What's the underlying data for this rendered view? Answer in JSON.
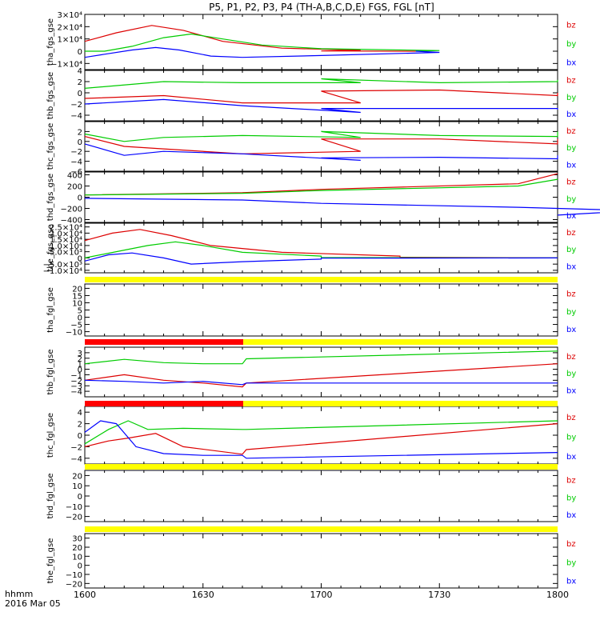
{
  "title": "P5, P1, P2, P3, P4 (TH-A,B,C,D,E) FGS, FGL [nT]",
  "date_label_top": "hhmm",
  "date_label_bottom": "2016 Mar 05",
  "colors": {
    "bx": "#0000ff",
    "by": "#00cc00",
    "bz": "#dd0000",
    "flag_yellow": "#ffff00",
    "flag_red": "#ff0000",
    "axis": "#000000"
  },
  "chart_data": {
    "type": "line",
    "x_axis": {
      "unit": "hhmm",
      "range": [
        1600,
        1800
      ],
      "ticks": [
        1600,
        1630,
        1700,
        1730,
        1800
      ],
      "tick_labels": [
        "1600",
        "1630",
        "1700",
        "1730",
        "1800"
      ]
    },
    "panels": [
      {
        "ylabel": "tha_fgs_gse",
        "ylim": [
          -15000,
          30000
        ],
        "ticks": [
          -10000,
          0,
          10000,
          20000,
          30000
        ],
        "tick_labels": [
          "−1×10⁴",
          "0",
          "1×10⁴",
          "2×10⁴",
          "3×10⁴"
        ],
        "series": [
          {
            "name": "bz",
            "x": [
              1600,
              1608,
              1617,
              1625,
              1635,
              1650,
              1670,
              1700,
              1724
            ],
            "y": [
              8000,
              15000,
              21000,
              17000,
              8000,
              2500,
              800,
              200,
              0
            ]
          },
          {
            "name": "by",
            "x": [
              1600,
              1605,
              1612,
              1620,
              1627,
              1635,
              1645,
              1660,
              1690,
              1724
            ],
            "y": [
              0,
              0,
              4000,
              11000,
              14000,
              10000,
              5000,
              2000,
              500,
              0
            ]
          },
          {
            "name": "bx",
            "x": [
              1600,
              1605,
              1612,
              1618,
              1624,
              1632,
              1640,
              1660,
              1690,
              1724
            ],
            "y": [
              -5000,
              -2500,
              1000,
              3000,
              1000,
              -4000,
              -5000,
              -3500,
              -1000,
              0
            ]
          }
        ]
      },
      {
        "ylabel": "thb_fgs_gse",
        "ylim": [
          -5,
          4
        ],
        "ticks": [
          -4,
          -2,
          0,
          2,
          4
        ],
        "tick_labels": [
          "−4",
          "−2",
          "0",
          "2",
          "4"
        ],
        "series": [
          {
            "name": "by",
            "x": [
              1600,
              1620,
              1640,
              1670,
              1700,
              1730,
              1760,
              1800
            ],
            "y": [
              0.8,
              2.0,
              1.8,
              1.8,
              2.5,
              1.8,
              2.0,
              2.3
            ]
          },
          {
            "name": "bz",
            "x": [
              1600,
              1620,
              1640,
              1670,
              1700,
              1730,
              1760,
              1800
            ],
            "y": [
              -1.0,
              -0.5,
              -1.8,
              -1.8,
              0.3,
              0.5,
              -0.5,
              0.0
            ]
          },
          {
            "name": "bx",
            "x": [
              1600,
              1620,
              1640,
              1670,
              1700,
              1730,
              1760,
              1800
            ],
            "y": [
              -2.0,
              -1.2,
              -2.3,
              -3.5,
              -2.8,
              -2.8,
              -2.8,
              -3.0
            ]
          }
        ]
      },
      {
        "ylabel": "thc_fgs_gse",
        "ylim": [
          -6,
          4
        ],
        "ticks": [
          -6,
          -4,
          -2,
          0,
          2
        ],
        "tick_labels": [
          "−6",
          "−4",
          "−2",
          "0",
          "2"
        ],
        "series": [
          {
            "name": "by",
            "x": [
              1600,
              1610,
              1620,
              1640,
              1670,
              1700,
              1730,
              1760,
              1800
            ],
            "y": [
              1.5,
              0.0,
              0.8,
              1.2,
              0.8,
              2.0,
              1.2,
              1.0,
              2.0
            ]
          },
          {
            "name": "bz",
            "x": [
              1600,
              1610,
              1620,
              1640,
              1670,
              1700,
              1730,
              1760,
              1800
            ],
            "y": [
              1.0,
              -1.0,
              -1.5,
              -2.5,
              -2.0,
              0.5,
              0.5,
              -0.5,
              0.5
            ]
          },
          {
            "name": "bx",
            "x": [
              1600,
              1610,
              1620,
              1640,
              1670,
              1700,
              1730,
              1760,
              1800
            ],
            "y": [
              -0.5,
              -2.8,
              -2.0,
              -2.5,
              -3.8,
              -3.3,
              -3.2,
              -3.5,
              -2.8
            ]
          }
        ]
      },
      {
        "ylabel": "thd_fgs_gse",
        "ylim": [
          -450,
          450
        ],
        "ticks": [
          -400,
          -200,
          0,
          200,
          400
        ],
        "tick_labels": [
          "−400",
          "−200",
          "0",
          "200",
          "400"
        ],
        "series": [
          {
            "name": "bz",
            "x": [
              1600,
              1640,
              1700,
              1750,
              1800
            ],
            "y": [
              40,
              80,
              140,
              240,
              420
            ]
          },
          {
            "name": "by",
            "x": [
              1600,
              1640,
              1700,
              1750,
              1800
            ],
            "y": [
              40,
              70,
              120,
              200,
              320
            ]
          },
          {
            "name": "bx",
            "x": [
              1600,
              1640,
              1700,
              1750,
              1780,
              1800
            ],
            "y": [
              -20,
              -50,
              -110,
              -180,
              -240,
              -320
            ]
          }
        ]
      },
      {
        "ylabel": "the_fgs_gse",
        "ylim": [
          -12000,
          28000
        ],
        "ticks": [
          -10000,
          -5000,
          0,
          5000,
          10000,
          15000,
          20000,
          25000
        ],
        "tick_labels": [
          "−1.0×10⁴",
          "−5.0×10³",
          "0",
          "5.0×10³",
          "1.0×10⁴",
          "1.5×10⁴",
          "2.0×10⁴",
          "2.5×10⁴"
        ],
        "series": [
          {
            "name": "bz",
            "x": [
              1600,
              1607,
              1614,
              1622,
              1632,
              1650,
              1680,
              1720,
              1800
            ],
            "y": [
              14000,
              20000,
              23000,
              18000,
              10000,
              4500,
              1500,
              500,
              0
            ]
          },
          {
            "name": "by",
            "x": [
              1600,
              1608,
              1616,
              1623,
              1630,
              1640,
              1660,
              1700,
              1800
            ],
            "y": [
              0,
              5000,
              10000,
              13000,
              10000,
              4500,
              1500,
              300,
              0
            ]
          },
          {
            "name": "bx",
            "x": [
              1600,
              1606,
              1612,
              1620,
              1627,
              1640,
              1660,
              1700,
              1800
            ],
            "y": [
              -2500,
              2500,
              4000,
              0,
              -5000,
              -3000,
              -1000,
              -200,
              0
            ]
          }
        ]
      },
      {
        "ylabel": "tha_fgl_gse",
        "ylim": [
          -13,
          23
        ],
        "ticks": [
          -10,
          -5,
          0,
          5,
          10,
          15,
          20
        ],
        "tick_labels": [
          "−10",
          "−5",
          "0",
          "5",
          "10",
          "15",
          "20"
        ],
        "series": []
      },
      {
        "ylabel": "thb_fgl_gse",
        "ylim": [
          -5,
          4
        ],
        "ticks": [
          -4,
          -3,
          -2,
          -1,
          0,
          1,
          2,
          3
        ],
        "tick_labels": [
          "−4",
          "−3",
          "−2",
          "−1",
          "0",
          "1",
          "2",
          "3"
        ],
        "series": [
          {
            "name": "by",
            "x": [
              1600,
              1610,
              1620,
              1630,
              1640,
              1641,
              1800
            ],
            "y": [
              1.0,
              1.8,
              1.2,
              1.0,
              1.0,
              1.9,
              3.3
            ]
          },
          {
            "name": "bz",
            "x": [
              1600,
              1610,
              1620,
              1630,
              1640,
              1641,
              1800
            ],
            "y": [
              -2.0,
              -1.0,
              -2.0,
              -2.5,
              -3.2,
              -2.5,
              1.0
            ]
          },
          {
            "name": "bx",
            "x": [
              1600,
              1610,
              1620,
              1630,
              1640,
              1641,
              1800
            ],
            "y": [
              -2.0,
              -2.2,
              -2.5,
              -2.2,
              -2.8,
              -2.5,
              -2.5
            ]
          }
        ]
      },
      {
        "ylabel": "thc_fgl_gse",
        "ylim": [
          -5,
          5
        ],
        "ticks": [
          -4,
          -2,
          0,
          2,
          4
        ],
        "tick_labels": [
          "−4",
          "−2",
          "0",
          "2",
          "4"
        ],
        "series": [
          {
            "name": "by",
            "x": [
              1600,
              1606,
              1611,
              1616,
              1625,
              1640,
              1641,
              1800
            ],
            "y": [
              -1.5,
              1.0,
              2.5,
              1.0,
              1.2,
              1.0,
              1.0,
              2.5
            ]
          },
          {
            "name": "bz",
            "x": [
              1600,
              1606,
              1611,
              1618,
              1625,
              1640,
              1641,
              1800
            ],
            "y": [
              -2.0,
              -1.0,
              -0.5,
              0.3,
              -2.0,
              -3.3,
              -2.5,
              2.0
            ]
          },
          {
            "name": "bx",
            "x": [
              1600,
              1604,
              1608,
              1613,
              1620,
              1630,
              1640,
              1641,
              1800
            ],
            "y": [
              0.5,
              2.5,
              2.0,
              -2.0,
              -3.2,
              -3.5,
              -3.5,
              -4.0,
              -3.0
            ]
          }
        ]
      },
      {
        "ylabel": "thd_fgl_gse",
        "ylim": [
          -25,
          25
        ],
        "ticks": [
          -20,
          -10,
          0,
          10,
          20
        ],
        "tick_labels": [
          "−20",
          "−10",
          "0",
          "10",
          "20"
        ],
        "series": []
      },
      {
        "ylabel": "the_fgl_gse",
        "ylim": [
          -25,
          35
        ],
        "ticks": [
          -20,
          -10,
          0,
          10,
          20,
          30
        ],
        "tick_labels": [
          "−20",
          "−10",
          "0",
          "10",
          "20",
          "30"
        ],
        "series": []
      }
    ],
    "legend": {
      "position": "right",
      "entries": [
        "bz",
        "by",
        "bx"
      ]
    }
  }
}
